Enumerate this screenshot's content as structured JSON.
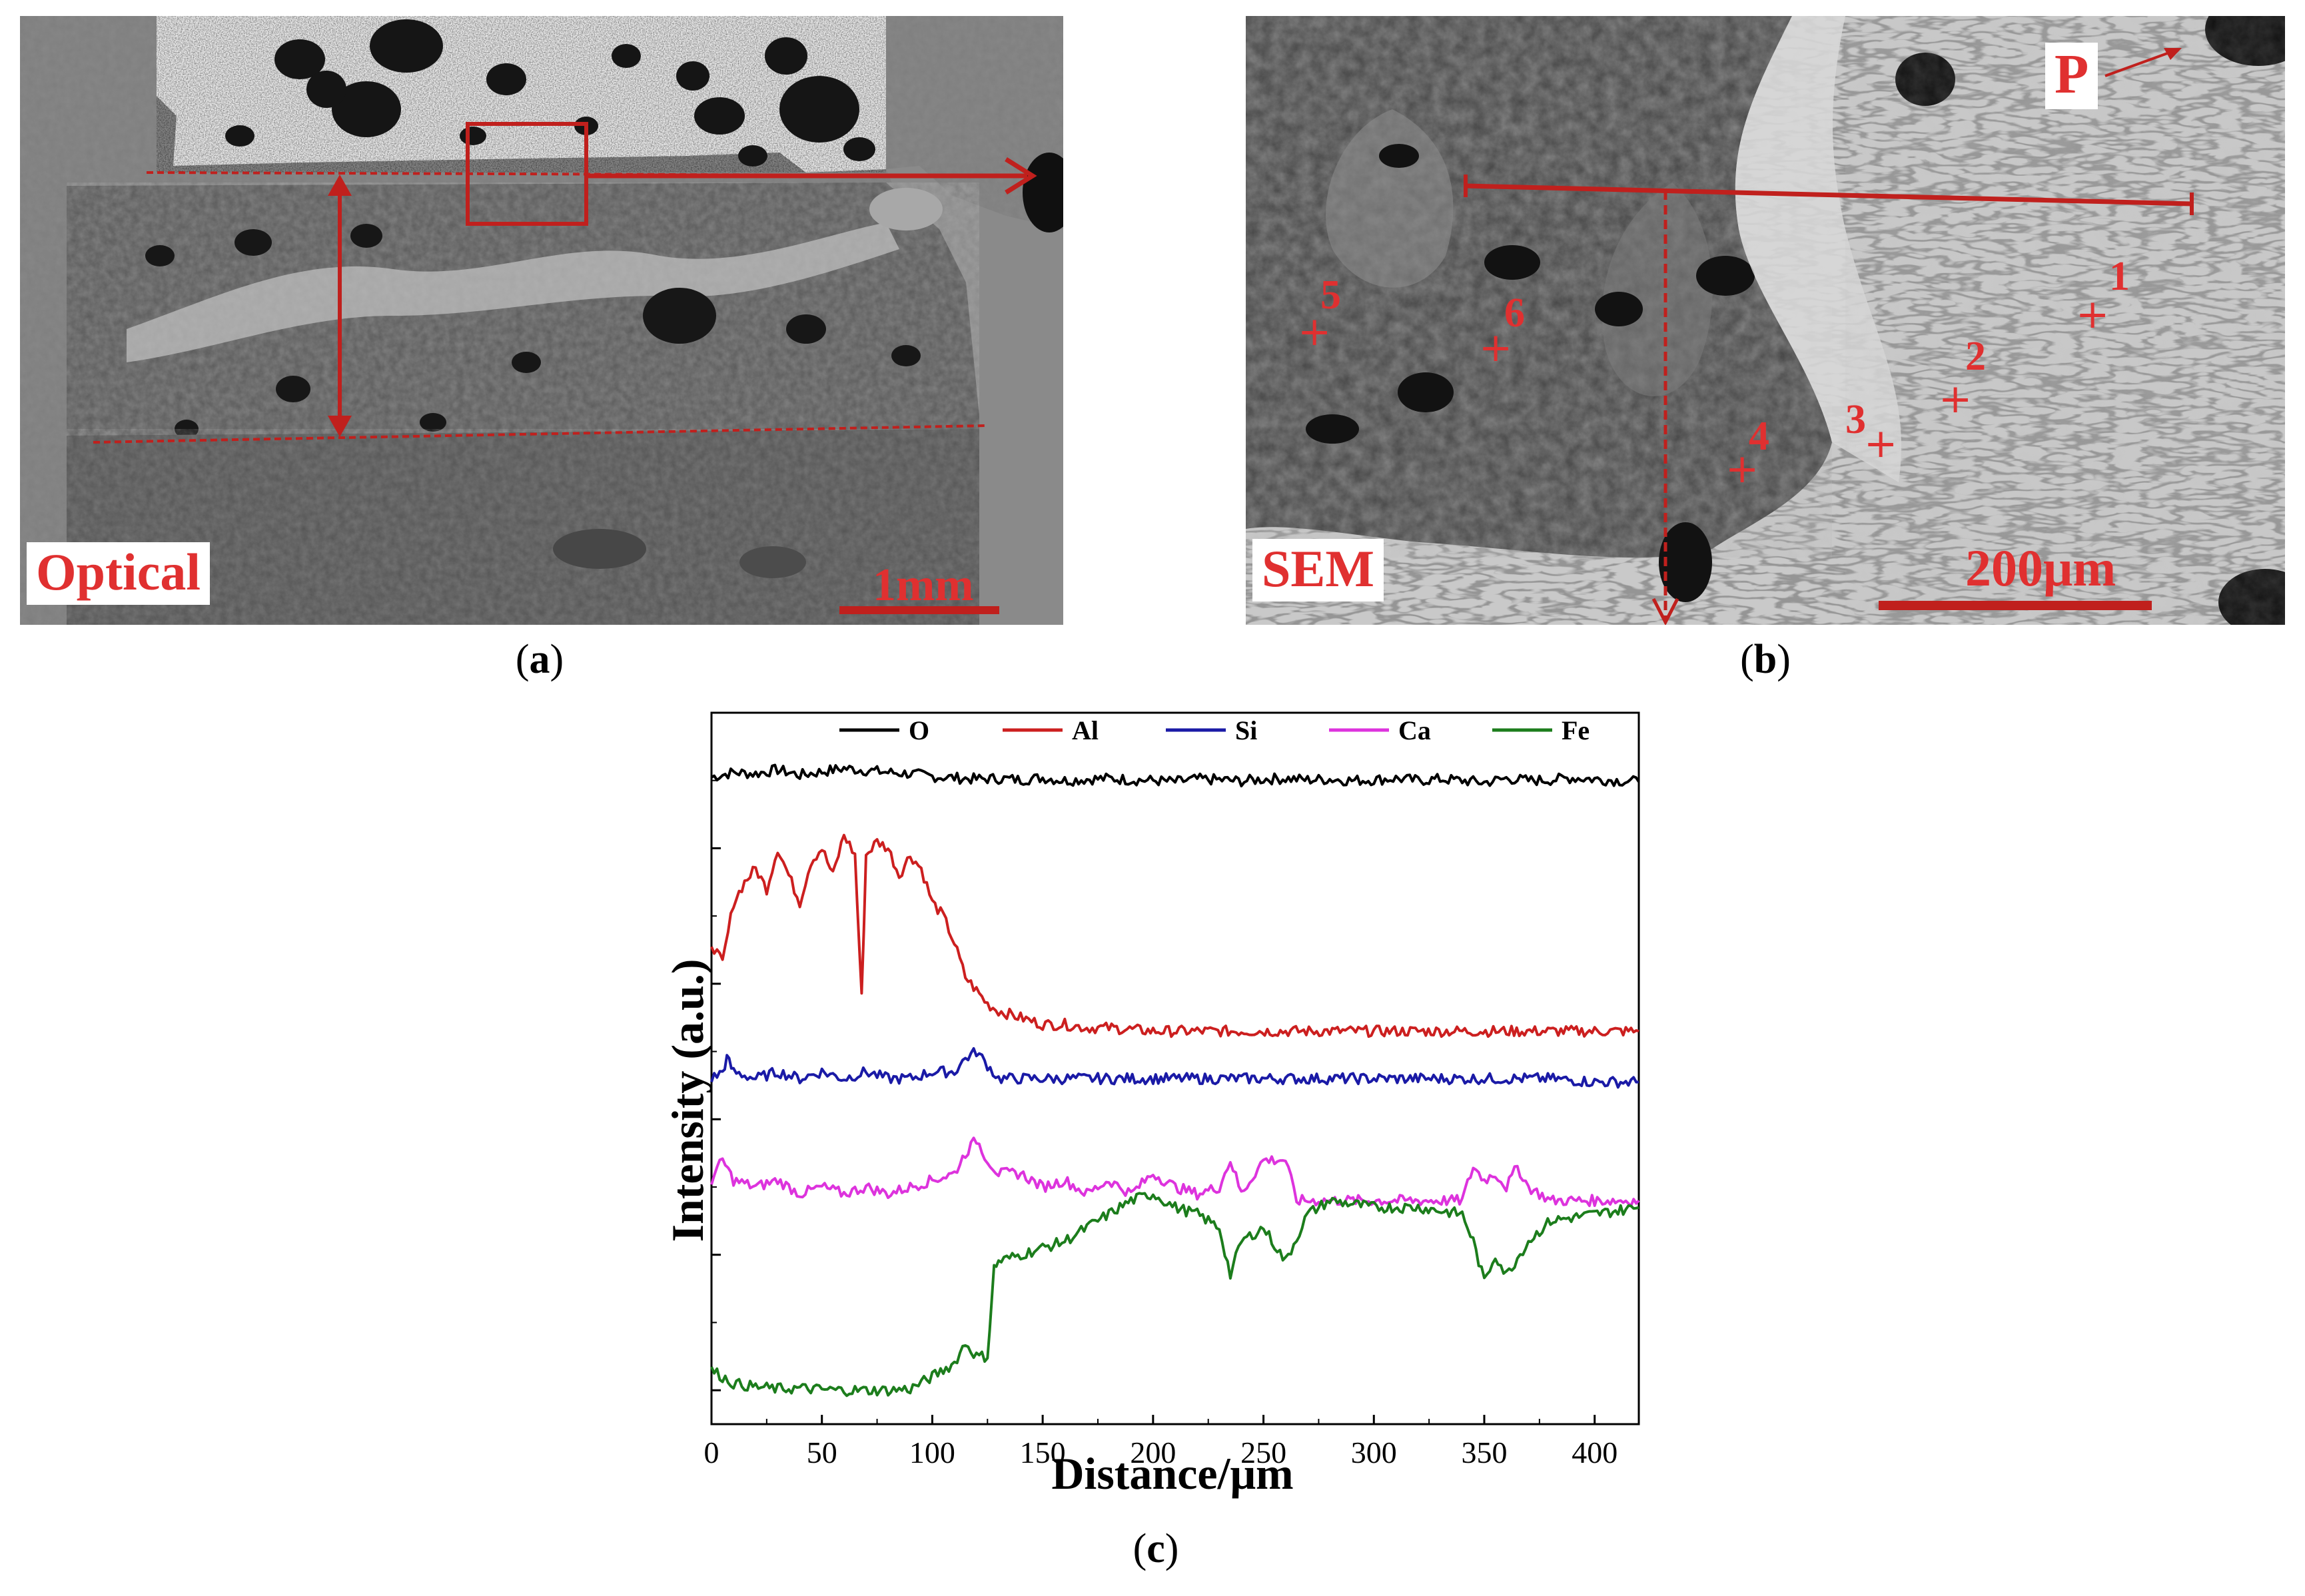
{
  "panels": {
    "a": {
      "caption_letter": "a",
      "tag": "Optical",
      "scale_label": "1mm"
    },
    "b": {
      "caption_letter": "b",
      "tag": "SEM",
      "scale_label": "200μm",
      "point_P": "P",
      "points": [
        "1",
        "2",
        "3",
        "4",
        "5",
        "6"
      ]
    },
    "c": {
      "caption_letter": "c"
    }
  },
  "colors": {
    "annotation_red": "#c0201d",
    "O": "#000000",
    "Al": "#cc1f1f",
    "Si": "#1a1aa6",
    "Ca": "#dd33dd",
    "Fe": "#1c7d1c"
  },
  "chart_data": {
    "type": "line",
    "xlabel": "Distance/μm",
    "ylabel": "Intensity (a.u.)",
    "xlim": [
      0,
      420
    ],
    "xticks": [
      0,
      50,
      100,
      150,
      200,
      250,
      300,
      350,
      400
    ],
    "y_tick_labels_shown": false,
    "legend_position": "top",
    "series": [
      {
        "name": "O",
        "color": "#000000",
        "x": [
          0,
          10,
          20,
          30,
          40,
          50,
          60,
          70,
          80,
          90,
          100,
          110,
          120,
          130,
          140,
          150,
          160,
          170,
          180,
          190,
          200,
          210,
          220,
          230,
          240,
          250,
          260,
          270,
          280,
          290,
          300,
          310,
          320,
          330,
          340,
          350,
          360,
          370,
          380,
          390,
          400,
          410,
          420
        ],
        "y": [
          90.5,
          91.2,
          91.0,
          91.6,
          90.8,
          91.3,
          91.8,
          91.5,
          91.2,
          91.0,
          90.6,
          90.4,
          90.2,
          90.3,
          90.1,
          90.4,
          90.0,
          90.2,
          90.3,
          90.1,
          90.0,
          89.8,
          90.2,
          90.1,
          89.9,
          90.2,
          90.3,
          90.1,
          90.2,
          90.0,
          90.1,
          90.3,
          90.0,
          90.2,
          90.0,
          89.7,
          90.3,
          90.0,
          90.1,
          90.4,
          90.2,
          90.0,
          89.8
        ]
      },
      {
        "name": "Al",
        "color": "#cc1f1f",
        "x": [
          0,
          5,
          10,
          15,
          20,
          25,
          30,
          35,
          40,
          45,
          50,
          55,
          60,
          65,
          68,
          70,
          75,
          80,
          85,
          90,
          95,
          100,
          105,
          110,
          115,
          120,
          125,
          130,
          140,
          150,
          160,
          170,
          180,
          200,
          220,
          240,
          260,
          280,
          300,
          320,
          340,
          360,
          380,
          400,
          420
        ],
        "y": [
          66,
          63,
          72,
          75,
          77,
          74,
          80,
          76,
          72,
          78,
          80,
          76,
          82,
          79,
          58,
          79,
          81,
          80,
          76,
          79,
          77,
          72,
          70,
          66,
          61,
          59,
          57,
          56,
          55,
          54,
          54,
          53.5,
          53.5,
          53,
          53,
          53,
          53,
          53,
          53,
          53,
          53,
          53,
          53,
          53,
          53
        ]
      },
      {
        "name": "Si",
        "color": "#1a1aa6",
        "x": [
          0,
          5,
          7,
          10,
          20,
          30,
          40,
          50,
          60,
          70,
          80,
          90,
          100,
          110,
          115,
          120,
          125,
          130,
          140,
          150,
          160,
          170,
          180,
          200,
          220,
          240,
          260,
          280,
          300,
          320,
          340,
          350,
          360,
          380,
          400,
          420
        ],
        "y": [
          46,
          47,
          49,
          47,
          46,
          47,
          46,
          47,
          46,
          47,
          46,
          46,
          47,
          47,
          49,
          50,
          48,
          46,
          46,
          46,
          46,
          46,
          46,
          46,
          46,
          46,
          46,
          46,
          46,
          46,
          46,
          46,
          46,
          46,
          45.5,
          45.5
        ]
      },
      {
        "name": "Ca",
        "color": "#dd33dd",
        "x": [
          0,
          5,
          10,
          20,
          30,
          40,
          50,
          60,
          70,
          80,
          90,
          100,
          110,
          115,
          120,
          125,
          130,
          140,
          150,
          160,
          170,
          180,
          190,
          200,
          210,
          220,
          230,
          235,
          240,
          250,
          255,
          260,
          265,
          270,
          280,
          300,
          320,
          340,
          345,
          350,
          355,
          360,
          365,
          370,
          380,
          400,
          420
        ],
        "y": [
          31,
          34,
          31,
          30,
          31,
          29,
          30,
          29,
          30,
          29,
          30,
          31,
          32,
          35,
          37,
          34,
          32,
          32,
          30,
          31,
          29,
          31,
          29,
          32,
          30,
          29,
          30,
          34,
          29,
          34,
          34,
          34,
          28,
          28,
          28,
          28,
          28,
          28,
          33,
          31,
          32,
          30,
          33,
          30,
          28,
          28,
          28
        ]
      },
      {
        "name": "Fe",
        "color": "#1c7d1c",
        "x": [
          0,
          10,
          20,
          30,
          40,
          50,
          60,
          70,
          80,
          90,
          100,
          110,
          115,
          120,
          125,
          128,
          130,
          140,
          150,
          160,
          170,
          180,
          190,
          200,
          210,
          220,
          230,
          235,
          240,
          250,
          260,
          270,
          280,
          300,
          320,
          340,
          345,
          350,
          355,
          360,
          370,
          380,
          400,
          420
        ],
        "y": [
          3,
          1,
          0.5,
          0.2,
          0.3,
          0.1,
          0,
          0,
          0,
          0.2,
          2,
          4,
          7,
          5,
          5,
          18,
          19,
          20,
          21,
          22,
          24,
          26,
          28,
          29,
          27,
          26,
          24,
          17,
          22,
          24,
          19,
          26,
          28,
          27,
          27,
          26,
          22,
          16,
          20,
          17,
          22,
          25,
          26,
          27
        ]
      }
    ]
  }
}
